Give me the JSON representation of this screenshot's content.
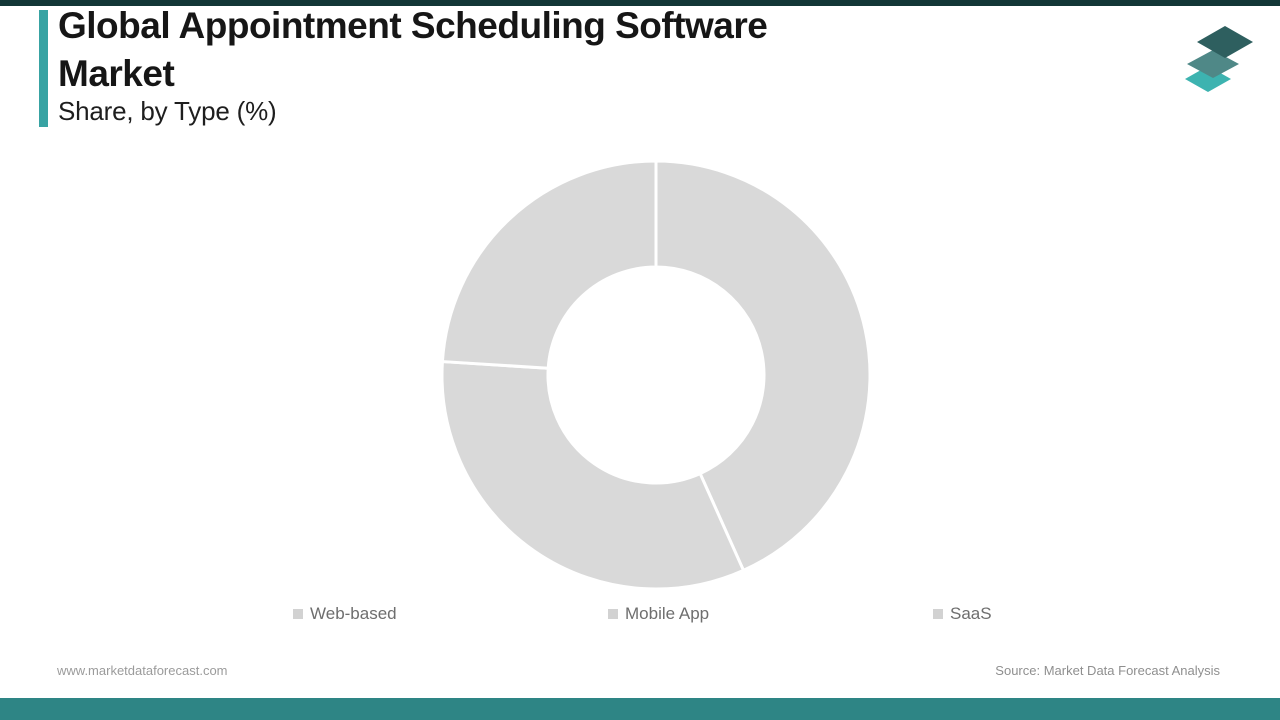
{
  "frame": {
    "top_bar_color": "#123636",
    "bottom_bar_color": "#2e8585"
  },
  "header": {
    "title_line1": "Global Appointment Scheduling Software",
    "title_line2": "Market",
    "subtitle": "Share, by Type (%)",
    "accent_color": "#38a3a3"
  },
  "brand": {
    "logo_name": "market-data-forecast-layers-logo",
    "logo_colors": [
      "#2e5f5f",
      "#4f8887",
      "#3db3b0"
    ]
  },
  "chart_data": {
    "type": "donut",
    "title": "Global Appointment Scheduling Software Market Share, by Type (%)",
    "categories": [
      "Web-based",
      "Mobile App",
      "SaaS"
    ],
    "values": [
      43.3,
      32.7,
      24.0
    ],
    "unit": "%",
    "start_angle_deg": 0,
    "direction": "clockwise",
    "inner_radius_ratio": 0.5,
    "slice_colors": [
      "#d9d9d9",
      "#d9d9d9",
      "#d9d9d9"
    ],
    "separator_color": "#ffffff",
    "legend_position": "bottom",
    "data_labels": "none"
  },
  "legend": {
    "marker_color": "#d2d2d2",
    "items": [
      "Web-based",
      "Mobile App",
      "SaaS"
    ]
  },
  "footer": {
    "left_text": "www.marketdataforecast.com",
    "right_text": "Source: Market Data Forecast Analysis"
  }
}
